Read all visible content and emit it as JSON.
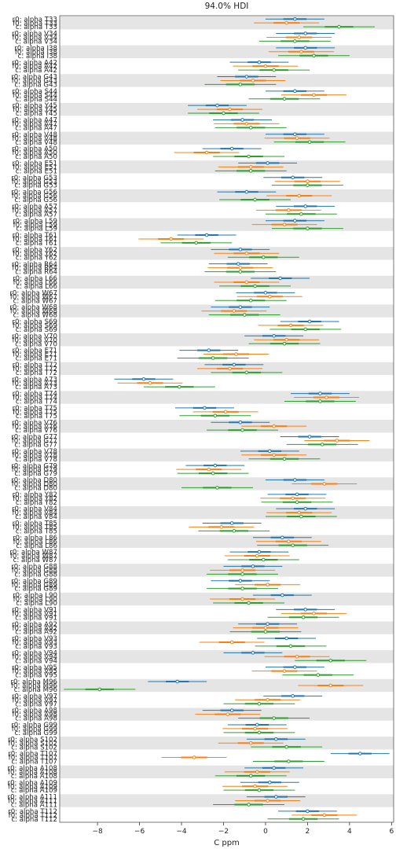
{
  "chart_data": {
    "type": "forest",
    "title": "94.0% HDI",
    "xlabel": "C ppm",
    "xlim": [
      -9.8,
      6.1
    ],
    "xticks": [
      -8,
      -6,
      -4,
      -2,
      0,
      2,
      4,
      6
    ],
    "xtick_labels": [
      "−8",
      "−6",
      "−4",
      "−2",
      "0",
      "2",
      "4",
      "6"
    ],
    "series_colors": [
      "#1f77b4",
      "#ff7f0e",
      "#2ca02c"
    ],
    "band_color": "#e5e5e5",
    "groups": [
      {
        "labels": [
          "r0: alpha T33",
          "f0: alpha T33",
          "c: alpha T33"
        ],
        "values": [
          1.4,
          1.0,
          3.5
        ]
      },
      {
        "labels": [
          "r0: alpha V34",
          "f0: alpha V34",
          "c: alpha V34"
        ],
        "values": [
          1.9,
          1.6,
          1.4
        ]
      },
      {
        "labels": [
          "r0: alpha I38",
          "f0: alpha I38",
          "c: alpha I38"
        ],
        "values": [
          1.9,
          1.7,
          2.3
        ]
      },
      {
        "labels": [
          "r0: alpha A42",
          "f0: alpha A42",
          "c: alpha A42"
        ],
        "values": [
          -0.3,
          0.0,
          0.4
        ]
      },
      {
        "labels": [
          "r0: alpha G43",
          "f0: alpha G43",
          "c: alpha G43"
        ],
        "values": [
          -0.9,
          -0.6,
          -1.2
        ]
      },
      {
        "labels": [
          "r0: alpha S44",
          "f0: alpha S44",
          "c: alpha S44"
        ],
        "values": [
          1.4,
          2.3,
          0.9
        ]
      },
      {
        "labels": [
          "r0: alpha Y45",
          "f0: alpha Y45",
          "c: alpha Y45"
        ],
        "values": [
          -2.3,
          -1.7,
          -2.0
        ]
      },
      {
        "labels": [
          "r0: alpha A47",
          "f0: alpha A47",
          "c: alpha A47"
        ],
        "values": [
          -1.1,
          -0.9,
          -0.7
        ]
      },
      {
        "labels": [
          "r0: alpha V48",
          "f0: alpha V48",
          "c: alpha V48"
        ],
        "values": [
          1.4,
          1.5,
          2.1
        ]
      },
      {
        "labels": [
          "r0: alpha A50",
          "f0: alpha A50",
          "c: alpha A50"
        ],
        "values": [
          -1.6,
          -2.8,
          -0.8
        ]
      },
      {
        "labels": [
          "r0: alpha E51",
          "f0: alpha E51",
          "c: alpha E51"
        ],
        "values": [
          0.1,
          -0.7,
          -0.7
        ]
      },
      {
        "labels": [
          "r0: alpha G53",
          "f0: alpha G53",
          "c: alpha G53"
        ],
        "values": [
          1.3,
          2.0,
          2.0
        ]
      },
      {
        "labels": [
          "r0: alpha G56",
          "f0: alpha G56",
          "c: alpha G56"
        ],
        "values": [
          -0.9,
          1.6,
          -0.5
        ]
      },
      {
        "labels": [
          "r0: alpha A57",
          "f0: alpha A57",
          "c: alpha A57"
        ],
        "values": [
          1.9,
          1.1,
          1.7
        ]
      },
      {
        "labels": [
          "r0: alpha L59",
          "f0: alpha L59",
          "c: alpha L59"
        ],
        "values": [
          1.4,
          0.9,
          2.0
        ]
      },
      {
        "labels": [
          "r0: alpha T61",
          "f0: alpha T61",
          "c: alpha T61"
        ],
        "values": [
          -2.8,
          -4.5,
          -3.3
        ]
      },
      {
        "labels": [
          "r0: alpha Y62",
          "f0: alpha Y62",
          "c: alpha Y62"
        ],
        "values": [
          -1.2,
          -0.9,
          -0.1
        ]
      },
      {
        "labels": [
          "r0: alpha R64",
          "f0: alpha R64",
          "c: alpha R64"
        ],
        "values": [
          -1.3,
          -1.2,
          -1.2
        ]
      },
      {
        "labels": [
          "r0: alpha L66",
          "f0: alpha L66",
          "c: alpha L66"
        ],
        "values": [
          0.7,
          -0.9,
          -0.5
        ]
      },
      {
        "labels": [
          "r0: alpha W67",
          "f0: alpha W67",
          "c: alpha W67"
        ],
        "values": [
          0.0,
          0.2,
          -0.7
        ]
      },
      {
        "labels": [
          "r0: alpha W68",
          "f0: alpha W68",
          "c: alpha W68"
        ],
        "values": [
          -1.2,
          -1.5,
          -1.0
        ]
      },
      {
        "labels": [
          "r0: alpha S69",
          "f0: alpha S69",
          "c: alpha S69"
        ],
        "values": [
          2.1,
          1.2,
          1.9
        ]
      },
      {
        "labels": [
          "r0: alpha V70",
          "f0: alpha V70",
          "c: alpha V70"
        ],
        "values": [
          0.4,
          1.0,
          0.9
        ]
      },
      {
        "labels": [
          "r0: alpha E71",
          "f0: alpha E71",
          "c: alpha E71"
        ],
        "values": [
          -2.7,
          -1.4,
          -2.5
        ]
      },
      {
        "labels": [
          "r0: alpha T72",
          "f0: alpha T72",
          "c: alpha T72"
        ],
        "values": [
          -1.5,
          -1.7,
          -0.9
        ]
      },
      {
        "labels": [
          "r0: alpha A73",
          "f0: alpha A73",
          "c: alpha A73"
        ],
        "values": [
          -5.8,
          -5.5,
          -4.1
        ]
      },
      {
        "labels": [
          "r0: alpha T74",
          "f0: alpha T74",
          "c: alpha T74"
        ],
        "values": [
          2.6,
          2.9,
          2.6
        ]
      },
      {
        "labels": [
          "r0: alpha T75",
          "f0: alpha T75",
          "c: alpha T75"
        ],
        "values": [
          -2.9,
          -1.9,
          -2.4
        ]
      },
      {
        "labels": [
          "r0: alpha V76",
          "f0: alpha V76",
          "c: alpha V76"
        ],
        "values": [
          -1.2,
          0.4,
          -1.1
        ]
      },
      {
        "labels": [
          "r0: alpha G77",
          "f0: alpha G77",
          "c: alpha G77"
        ],
        "values": [
          2.1,
          3.4,
          2.7
        ]
      },
      {
        "labels": [
          "r0: alpha V78",
          "f0: alpha V78",
          "c: alpha V78"
        ],
        "values": [
          0.2,
          0.4,
          0.9
        ]
      },
      {
        "labels": [
          "r0: alpha G79",
          "f0: alpha G79",
          "c: alpha G79"
        ],
        "values": [
          -2.4,
          -2.7,
          -2.5
        ]
      },
      {
        "labels": [
          "r0: alpha D80",
          "f0: alpha D80",
          "c: alpha D80"
        ],
        "values": [
          1.4,
          2.8,
          -2.3
        ]
      },
      {
        "labels": [
          "r0: alpha Y82",
          "f0: alpha Y82",
          "c: alpha Y82"
        ],
        "values": [
          1.5,
          1.3,
          1.5
        ]
      },
      {
        "labels": [
          "r0: alpha V84",
          "f0: alpha V84",
          "c: alpha V84"
        ],
        "values": [
          1.9,
          1.6,
          1.7
        ]
      },
      {
        "labels": [
          "r0: alpha T85",
          "f0: alpha T85",
          "c: alpha T85"
        ],
        "values": [
          -1.6,
          -2.1,
          -1.5
        ]
      },
      {
        "labels": [
          "r0: alpha L86",
          "f0: alpha L86",
          "c: alpha L86"
        ],
        "values": [
          0.8,
          1.1,
          1.3
        ]
      },
      {
        "labels": [
          "r0: alpha W87",
          "f0: alpha W87",
          "c: alpha W87"
        ],
        "values": [
          -0.3,
          -0.4,
          -0.1
        ]
      },
      {
        "labels": [
          "r0: alpha G88",
          "f0: alpha G88",
          "c: alpha G88"
        ],
        "values": [
          -0.6,
          -1.1,
          -1.1
        ]
      },
      {
        "labels": [
          "r0: alpha G89",
          "f0: alpha G89",
          "c: alpha G89"
        ],
        "values": [
          -1.2,
          0.1,
          -1.1
        ]
      },
      {
        "labels": [
          "r0: alpha L90",
          "f0: alpha L90",
          "c: alpha L90"
        ],
        "values": [
          0.8,
          -1.1,
          -0.8
        ]
      },
      {
        "labels": [
          "r0: alpha V91",
          "f0: alpha V91",
          "c: alpha V91"
        ],
        "values": [
          1.9,
          2.3,
          1.8
        ]
      },
      {
        "labels": [
          "r0: alpha A92",
          "f0: alpha A92",
          "c: alpha A92"
        ],
        "values": [
          0.1,
          0.0,
          0.0
        ]
      },
      {
        "labels": [
          "r0: alpha V93",
          "f0: alpha V93",
          "c: alpha V93"
        ],
        "values": [
          1.0,
          -1.6,
          1.2
        ]
      },
      {
        "labels": [
          "r0: alpha V94",
          "f0: alpha V94",
          "c: alpha V94"
        ],
        "values": [
          -0.6,
          1.5,
          3.1
        ]
      },
      {
        "labels": [
          "r0: alpha V95",
          "f0: alpha V95",
          "c: alpha V95"
        ],
        "values": [
          1.4,
          0.9,
          2.5
        ]
      },
      {
        "labels": [
          "r0: alpha M96",
          "f0: alpha M96",
          "c: alpha M96"
        ],
        "values": [
          -4.2,
          3.1,
          -7.9
        ]
      },
      {
        "labels": [
          "r0: alpha V97",
          "f0: alpha V97",
          "c: alpha V97"
        ],
        "values": [
          1.3,
          0.1,
          -0.3
        ]
      },
      {
        "labels": [
          "r0: alpha A98",
          "f0: alpha A98",
          "c: alpha A98"
        ],
        "values": [
          -1.6,
          -1.8,
          0.4
        ]
      },
      {
        "labels": [
          "r0: alpha G99",
          "f0: alpha G99",
          "c: alpha G99"
        ],
        "values": [
          -0.4,
          -0.5,
          -0.3
        ]
      },
      {
        "labels": [
          "r0: alpha S102",
          "f0: alpha S102",
          "c: alpha S102"
        ],
        "values": [
          0.5,
          -0.7,
          1.0
        ]
      },
      {
        "labels": [
          "r0: alpha T107",
          "f0: alpha T107",
          "c: alpha T107"
        ],
        "values": [
          4.5,
          -3.4,
          1.1
        ]
      },
      {
        "labels": [
          "r0: alpha A108",
          "f0: alpha A108",
          "c: alpha A108"
        ],
        "values": [
          0.4,
          -0.4,
          -0.7
        ]
      },
      {
        "labels": [
          "r0: alpha A109",
          "f0: alpha A109",
          "c: alpha A109"
        ],
        "values": [
          0.2,
          -0.5,
          -0.3
        ]
      },
      {
        "labels": [
          "r0: alpha A111",
          "f0: alpha A111",
          "c: alpha A111"
        ],
        "values": [
          0.5,
          0.1,
          -0.8
        ]
      },
      {
        "labels": [
          "r0: alpha T112",
          "f0: alpha T112",
          "c: alpha T112"
        ],
        "values": [
          2.0,
          2.8,
          1.8
        ]
      }
    ]
  }
}
